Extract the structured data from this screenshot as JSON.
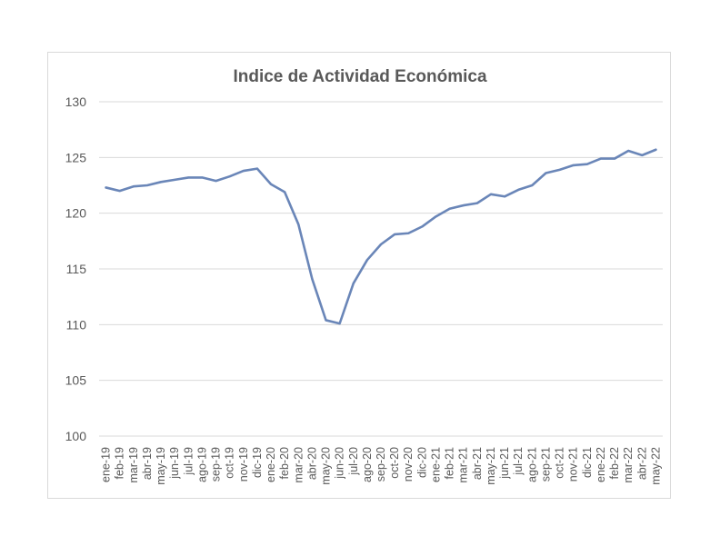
{
  "chart_data": {
    "type": "line",
    "title": "Indice de Actividad Económica",
    "xlabel": "",
    "ylabel": "",
    "ylim": [
      100,
      130
    ],
    "yticks": [
      100,
      105,
      110,
      115,
      120,
      125,
      130
    ],
    "grid": true,
    "legend": "none",
    "categories": [
      "ene-19",
      "feb-19",
      "mar-19",
      "abr-19",
      "may-19",
      "jun-19",
      "jul-19",
      "ago-19",
      "sep-19",
      "oct-19",
      "nov-19",
      "dic-19",
      "ene-20",
      "feb-20",
      "mar-20",
      "abr-20",
      "may-20",
      "jun-20",
      "jul-20",
      "ago-20",
      "sep-20",
      "oct-20",
      "nov-20",
      "dic-20",
      "ene-21",
      "feb-21",
      "mar-21",
      "abr-21",
      "may-21",
      "jun-21",
      "jul-21",
      "ago-21",
      "sep-21",
      "oct-21",
      "nov-21",
      "dic-21",
      "ene-22",
      "feb-22",
      "mar-22",
      "abr-22",
      "may-22"
    ],
    "series": [
      {
        "color": "#6a86b8",
        "values": [
          122.3,
          122.0,
          122.4,
          122.5,
          122.8,
          123.0,
          123.2,
          123.2,
          122.9,
          123.3,
          123.8,
          124.0,
          122.6,
          121.9,
          119.0,
          114.1,
          110.4,
          110.1,
          113.7,
          115.8,
          117.2,
          118.1,
          118.2,
          118.8,
          119.7,
          120.4,
          120.7,
          120.9,
          121.7,
          121.5,
          122.1,
          122.5,
          123.6,
          123.9,
          124.3,
          124.4,
          124.9,
          124.9,
          125.6,
          125.2,
          125.7
        ]
      }
    ]
  }
}
